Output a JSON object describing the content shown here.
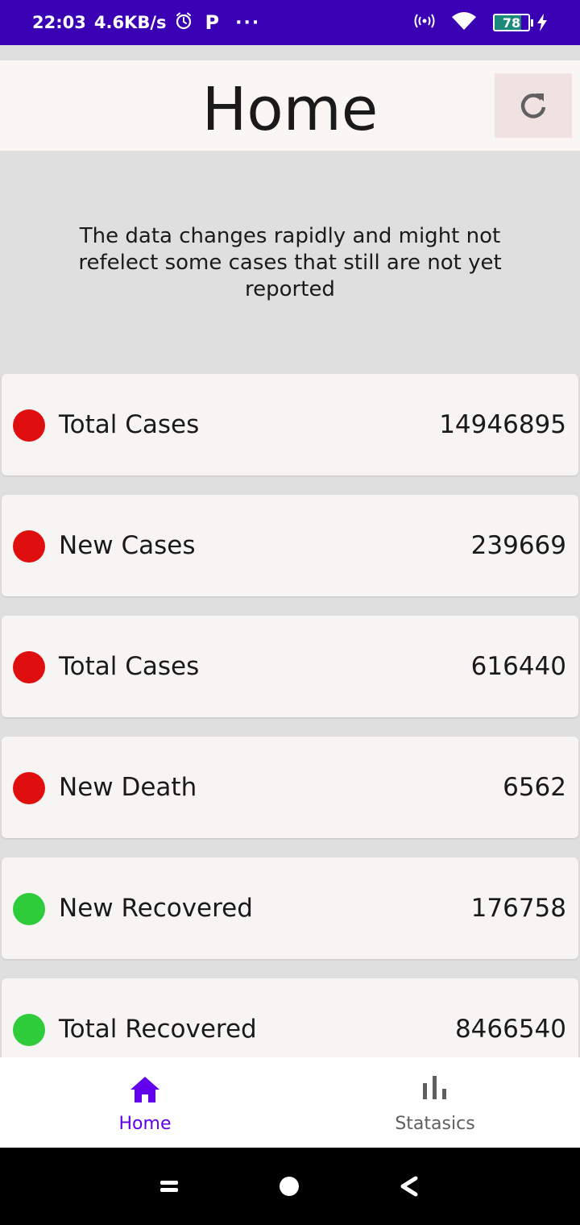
{
  "status_bar": {
    "time": "22:03",
    "speed": "4.6KB/s",
    "p_indicator": "P",
    "more": "···",
    "battery": "78",
    "battery_level": 0.78,
    "background_color": "#3a00b4"
  },
  "header": {
    "title": "Home",
    "refresh_icon": "refresh-icon"
  },
  "notice": "The data changes rapidly and might not refelect some cases that still are not yet reported",
  "stats": [
    {
      "label": "Total Cases",
      "value": "14946895",
      "color": "#e00f0f"
    },
    {
      "label": "New Cases",
      "value": "239669",
      "color": "#e00f0f"
    },
    {
      "label": "Total Cases",
      "value": "616440",
      "color": "#e00f0f"
    },
    {
      "label": "New Death",
      "value": "6562",
      "color": "#e00f0f"
    },
    {
      "label": "New Recovered",
      "value": "176758",
      "color": "#2ecc3a"
    },
    {
      "label": "Total Recovered",
      "value": "8466540",
      "color": "#2ecc3a"
    }
  ],
  "bottom_nav": {
    "items": [
      {
        "label": "Home",
        "icon": "home-icon",
        "active": true
      },
      {
        "label": "Statasics",
        "icon": "bar-chart-icon",
        "active": false
      }
    ],
    "active_color": "#6200ee",
    "inactive_color": "#5f5f5f"
  },
  "system_nav": {
    "icons": [
      "menu-icon",
      "home-circle-icon",
      "back-icon"
    ]
  }
}
